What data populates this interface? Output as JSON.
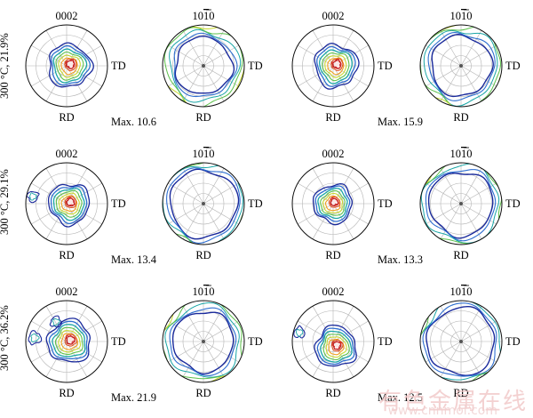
{
  "rows": [
    {
      "label": "300 °C, 21.9%",
      "samples": [
        {
          "basal_title": "0002",
          "prism_title": "10",
          "prism_bar": "1",
          "prism_tail": "0",
          "max": "Max. 10.6",
          "td": "TD",
          "rd": "RD"
        },
        {
          "basal_title": "0002",
          "prism_title": "10",
          "prism_bar": "1",
          "prism_tail": "0",
          "max": "Max. 15.9",
          "td": "TD",
          "rd": "RD"
        }
      ]
    },
    {
      "label": "300 °C, 29.1%",
      "samples": [
        {
          "basal_title": "0002",
          "prism_title": "10",
          "prism_bar": "1",
          "prism_tail": "0",
          "max": "Max. 13.4",
          "td": "TD",
          "rd": "RD"
        },
        {
          "basal_title": "0002",
          "prism_title": "10",
          "prism_bar": "1",
          "prism_tail": "0",
          "max": "Max. 13.3",
          "td": "TD",
          "rd": "RD"
        }
      ]
    },
    {
      "label": "300 °C, 36.2%",
      "samples": [
        {
          "basal_title": "0002",
          "prism_title": "10",
          "prism_bar": "1",
          "prism_tail": "0",
          "max": "Max. 21.9",
          "td": "TD",
          "rd": "RD"
        },
        {
          "basal_title": "0002",
          "prism_title": "10",
          "prism_bar": "1",
          "prism_tail": "0",
          "max": "Max. 12.5",
          "td": "TD",
          "rd": "RD"
        }
      ]
    }
  ],
  "contour_colors": [
    "#1a2a9c",
    "#2f6fd0",
    "#1aa6a6",
    "#5cc04a",
    "#c8d830",
    "#f0a020",
    "#e05020",
    "#c81818",
    "#fbe6e6"
  ],
  "watermark": "有色金属在线",
  "watermark_sub": "www.cnnmol.com"
}
